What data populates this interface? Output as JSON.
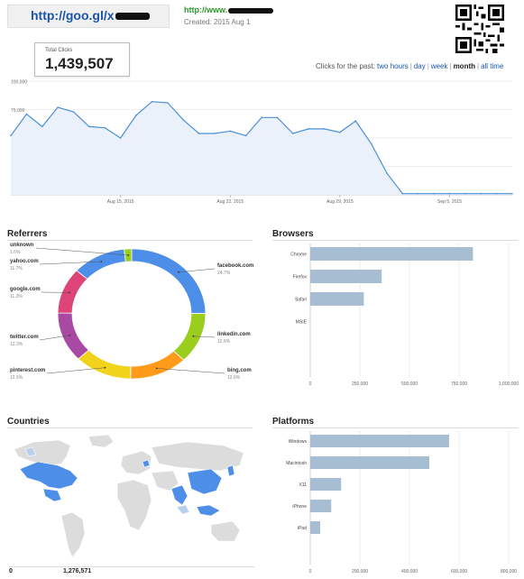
{
  "header": {
    "short_url": "http://goo.gl/x",
    "long_url": "http://www.",
    "created": "Created: 2015 Aug 1"
  },
  "summary": {
    "total_clicks_label": "Total Clicks",
    "total_clicks_value": "1,439,507"
  },
  "period": {
    "prefix": "Clicks for the past:",
    "options": [
      {
        "label": "two hours",
        "selected": false
      },
      {
        "label": "day",
        "selected": false
      },
      {
        "label": "week",
        "selected": false
      },
      {
        "label": "month",
        "selected": true
      },
      {
        "label": "all time",
        "selected": false
      }
    ]
  },
  "chart_data": [
    {
      "type": "area",
      "yticks": [
        "100,000",
        "75,000",
        "50,000",
        "25,000"
      ],
      "xticks": [
        "Aug 15, 2015",
        "Aug 22, 2015",
        "Aug 29, 2015",
        "Sep 5, 2015"
      ],
      "ylim": [
        0,
        100000
      ],
      "x": [
        "Aug 8",
        "Aug 9",
        "Aug 10",
        "Aug 11",
        "Aug 12",
        "Aug 13",
        "Aug 14",
        "Aug 15",
        "Aug 16",
        "Aug 17",
        "Aug 18",
        "Aug 19",
        "Aug 20",
        "Aug 21",
        "Aug 22",
        "Aug 23",
        "Aug 24",
        "Aug 25",
        "Aug 26",
        "Aug 27",
        "Aug 28",
        "Aug 29",
        "Aug 30",
        "Aug 31",
        "Sep 1",
        "Sep 2",
        "Sep 3",
        "Sep 4",
        "Sep 5",
        "Sep 6",
        "Sep 7",
        "Sep 8",
        "Sep 9"
      ],
      "values": [
        52000,
        71000,
        60000,
        77000,
        73000,
        60000,
        59000,
        50000,
        70000,
        82000,
        81000,
        66000,
        54000,
        54000,
        56000,
        52000,
        68000,
        68000,
        54000,
        58000,
        58000,
        55000,
        65000,
        45000,
        19000,
        1000,
        1000,
        1000,
        1000,
        1000,
        1000,
        1000,
        1000
      ],
      "color": "#4a8fd6"
    },
    {
      "type": "pie",
      "title": "Referrers",
      "slices": [
        {
          "name": "facebook.com",
          "pct": "24.7%",
          "value": 24.7,
          "color": "#4d8fe8"
        },
        {
          "name": "linkedin.com",
          "pct": "12.6%",
          "value": 12.6,
          "color": "#9acd1e"
        },
        {
          "name": "bing.com",
          "pct": "12.6%",
          "value": 12.6,
          "color": "#ff9a1a"
        },
        {
          "name": "pinterest.com",
          "pct": "12.5%",
          "value": 12.5,
          "color": "#f2d31c"
        },
        {
          "name": "twitter.com",
          "pct": "12.3%",
          "value": 12.3,
          "color": "#a84aa3"
        },
        {
          "name": "google.com",
          "pct": "11.3%",
          "value": 11.3,
          "color": "#dd4477"
        },
        {
          "name": "yahoo.com",
          "pct": "11.7%",
          "value": 11.7,
          "color": "#4d8fe8"
        },
        {
          "name": "unknown",
          "pct": "1.6%",
          "value": 1.6,
          "color": "#9acd1e"
        }
      ]
    },
    {
      "type": "bar",
      "title": "Browsers",
      "categories": [
        "Chrome",
        "Firefox",
        "Safari",
        "MSIE"
      ],
      "values": [
        820000,
        360000,
        270000,
        0
      ],
      "xticks": [
        "0",
        "250,000",
        "500,000",
        "750,000",
        "1,000,000"
      ],
      "xlim": [
        0,
        1000000
      ],
      "color": "#a7bdd2"
    },
    {
      "type": "bar",
      "title": "Platforms",
      "categories": [
        "Windows",
        "Macintosh",
        "X11",
        "iPhone",
        "iPad"
      ],
      "values": [
        630000,
        540000,
        140000,
        95000,
        45000
      ],
      "xticks": [
        "0",
        "200,000",
        "400,000",
        "600,000",
        "800,000"
      ],
      "xlim": [
        0,
        900000
      ],
      "color": "#a7bdd2"
    }
  ],
  "countries": {
    "title": "Countries",
    "min_label": "0",
    "max_label": "1,276,571",
    "color_low": "#dcdcdc",
    "color_high": "#4d8fe8"
  },
  "colors": {
    "link": "#1a56a8",
    "green": "#2a9a2a",
    "line": "#4a8fd6",
    "area": "#eaf1fb",
    "bar": "#a7bdd2"
  }
}
